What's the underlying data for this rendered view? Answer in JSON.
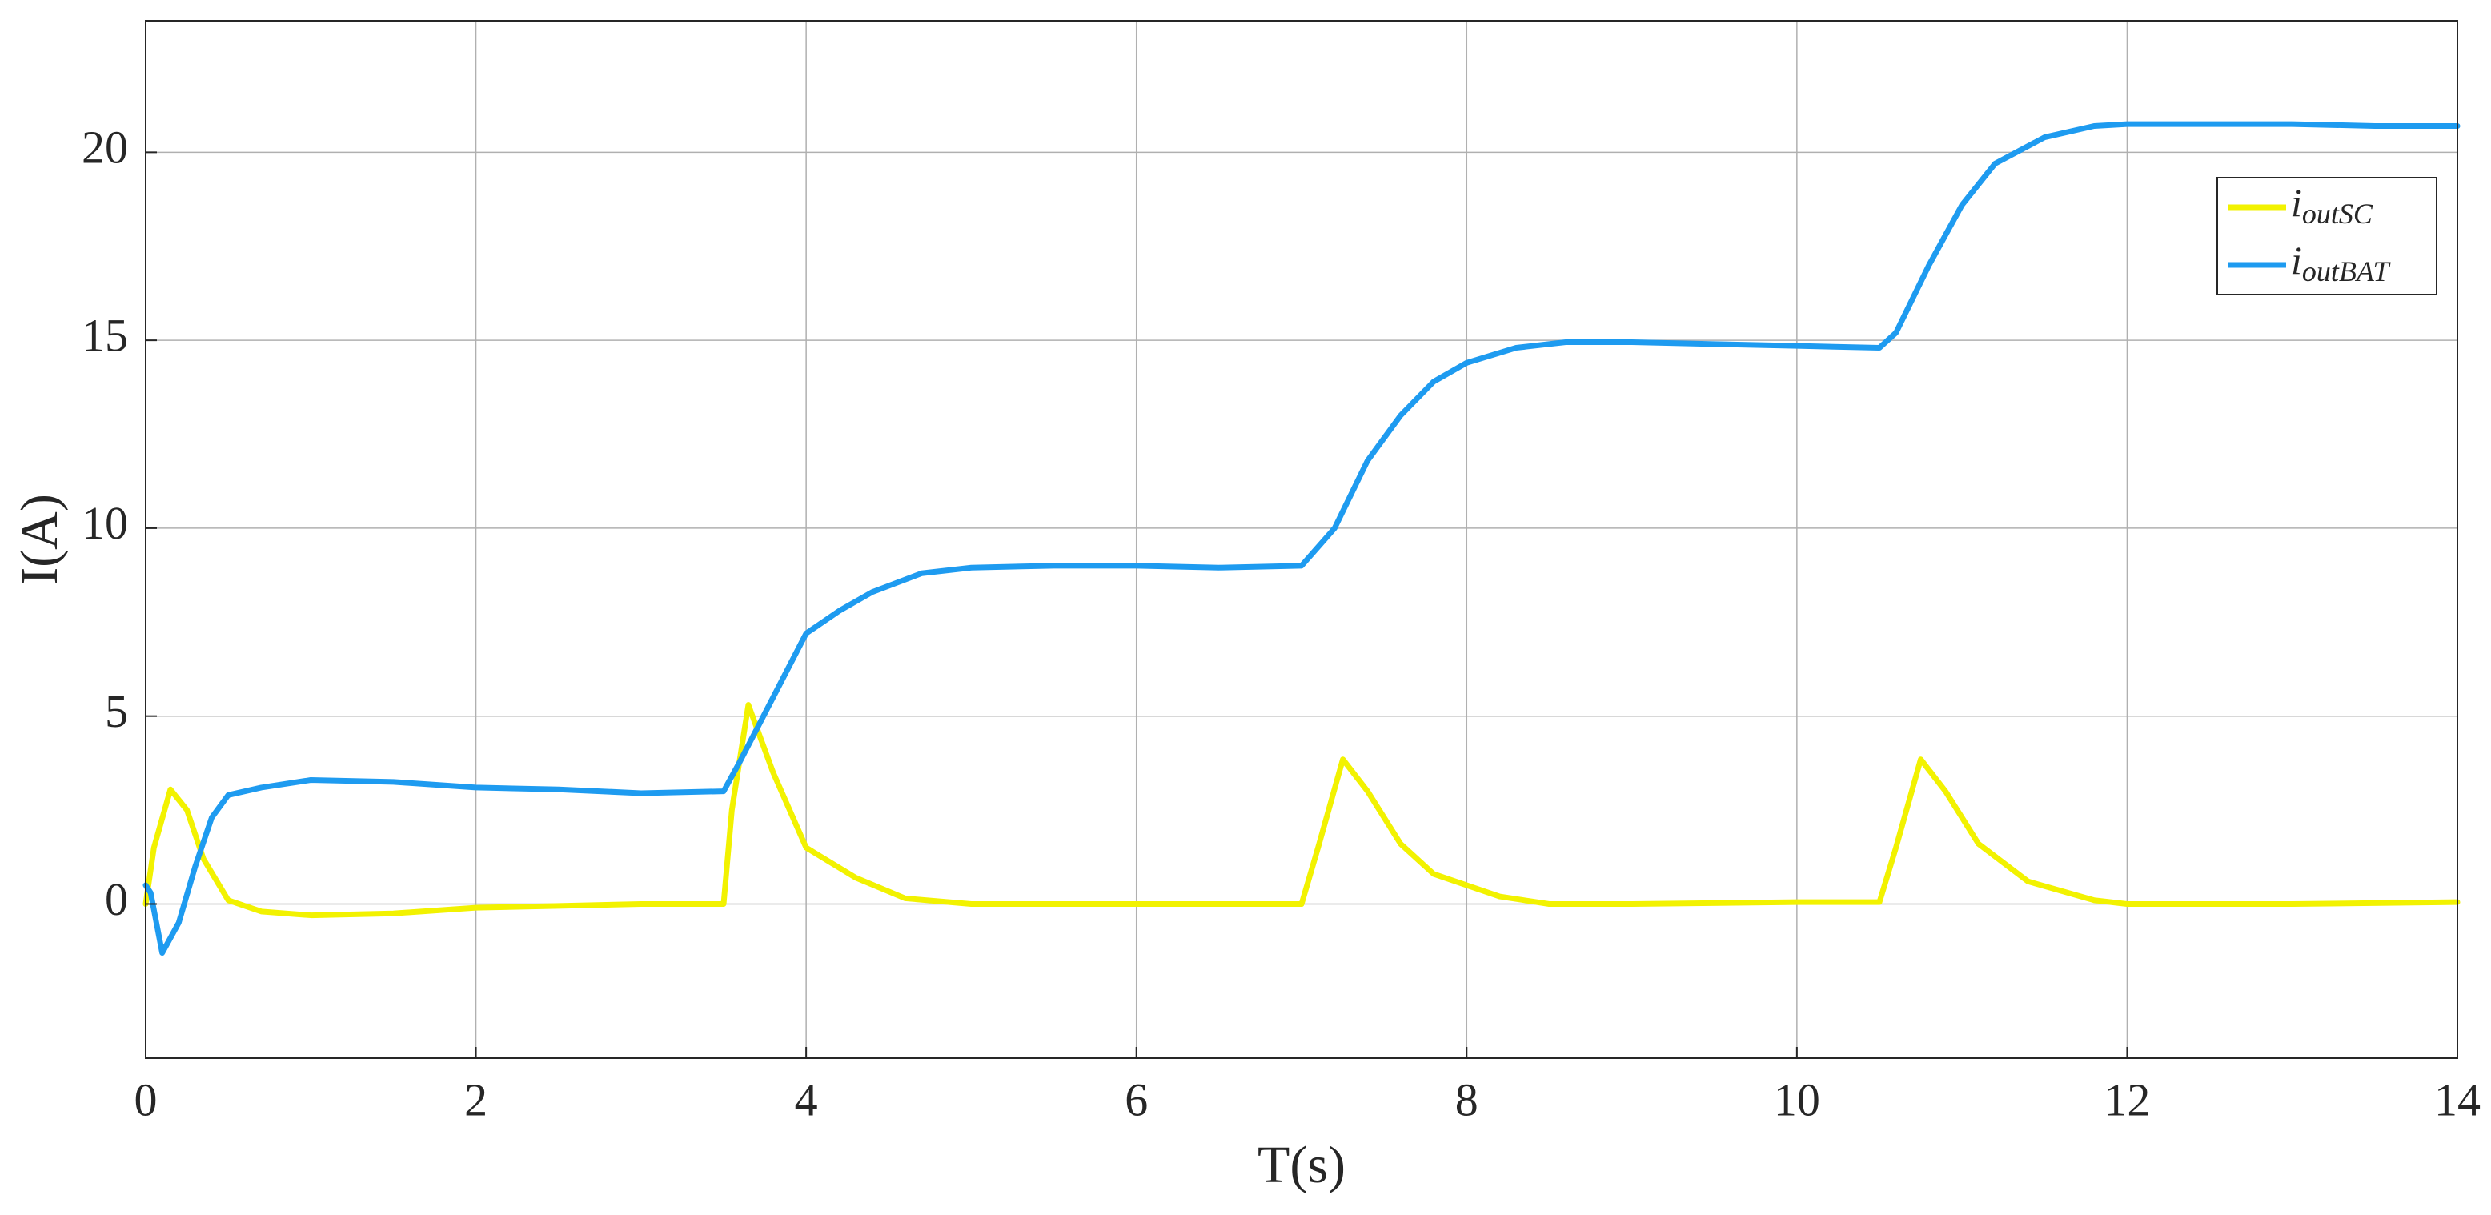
{
  "chart_data": {
    "type": "line",
    "xlabel": "T(s)",
    "ylabel": "I(A)",
    "xlim": [
      0,
      14
    ],
    "ylim": [
      -4.1,
      23.5
    ],
    "xticks": [
      0,
      2,
      4,
      6,
      8,
      10,
      12,
      14
    ],
    "yticks": [
      0,
      5,
      10,
      15,
      20
    ],
    "grid": true,
    "legend": "upper right",
    "series": [
      {
        "name": "i",
        "subscript": "outSC",
        "color": "#f2f200",
        "x": [
          0,
          0.05,
          0.15,
          0.25,
          0.35,
          0.5,
          0.7,
          1.0,
          1.5,
          2.0,
          2.5,
          3.0,
          3.5,
          3.55,
          3.65,
          3.8,
          4.0,
          4.3,
          4.6,
          5.0,
          6.0,
          7.0,
          7.1,
          7.25,
          7.4,
          7.6,
          7.8,
          8.2,
          8.5,
          9.0,
          10.0,
          10.5,
          10.6,
          10.75,
          10.9,
          11.1,
          11.4,
          11.8,
          12.0,
          13.0,
          14.0
        ],
        "values": [
          0,
          1.5,
          3.05,
          2.5,
          1.2,
          0.1,
          -0.2,
          -0.3,
          -0.25,
          -0.1,
          -0.05,
          0,
          0,
          2.5,
          5.3,
          3.5,
          1.5,
          0.7,
          0.15,
          0,
          0,
          0,
          1.5,
          3.85,
          3.0,
          1.6,
          0.8,
          0.2,
          0,
          0,
          0.05,
          0.05,
          1.5,
          3.85,
          3.0,
          1.6,
          0.6,
          0.1,
          0,
          0,
          0.05
        ]
      },
      {
        "name": "i",
        "subscript": "outBAT",
        "color": "#1e9bf0",
        "x": [
          0,
          0.03,
          0.1,
          0.2,
          0.3,
          0.4,
          0.5,
          0.7,
          1.0,
          1.5,
          2.0,
          2.5,
          3.0,
          3.5,
          3.6,
          3.8,
          4.0,
          4.2,
          4.4,
          4.7,
          5.0,
          5.5,
          6.0,
          6.5,
          7.0,
          7.2,
          7.4,
          7.6,
          7.8,
          8.0,
          8.3,
          8.6,
          9.0,
          9.5,
          10.0,
          10.5,
          10.6,
          10.8,
          11.0,
          11.2,
          11.5,
          11.8,
          12.0,
          12.5,
          13.0,
          13.5,
          14.0
        ],
        "values": [
          0.5,
          0.3,
          -1.3,
          -0.5,
          1.0,
          2.3,
          2.9,
          3.1,
          3.3,
          3.25,
          3.1,
          3.05,
          2.95,
          3.0,
          3.8,
          5.5,
          7.2,
          7.8,
          8.3,
          8.8,
          8.95,
          9.0,
          9.0,
          8.95,
          9.0,
          10.0,
          11.8,
          13.0,
          13.9,
          14.4,
          14.8,
          14.95,
          14.95,
          14.9,
          14.85,
          14.8,
          15.2,
          17.0,
          18.6,
          19.7,
          20.4,
          20.7,
          20.75,
          20.75,
          20.75,
          20.7,
          20.7
        ]
      }
    ]
  }
}
